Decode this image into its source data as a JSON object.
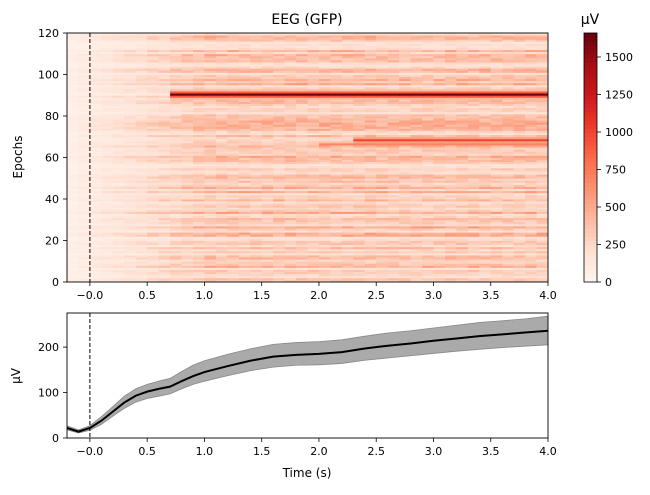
{
  "figure": {
    "title": "EEG (GFP)",
    "colorbar_title": "µV"
  },
  "chart_data": [
    {
      "type": "heatmap",
      "title": "EEG (GFP)",
      "ylabel": "Epochs",
      "xlim": [
        -0.2,
        4.0
      ],
      "ylim": [
        0,
        120
      ],
      "xticks": [
        "−0.0",
        "0.5",
        "1.0",
        "1.5",
        "2.0",
        "2.5",
        "3.0",
        "3.5",
        "4.0"
      ],
      "xtick_values": [
        0.0,
        0.5,
        1.0,
        1.5,
        2.0,
        2.5,
        3.0,
        3.5,
        4.0
      ],
      "yticks": [
        "0",
        "20",
        "40",
        "60",
        "80",
        "100",
        "120"
      ],
      "ytick_values": [
        0,
        20,
        40,
        60,
        80,
        100,
        120
      ],
      "event_line_x": 0.0,
      "colormap": "Reds",
      "colorbar": {
        "label": "µV",
        "range": [
          0,
          1660
        ],
        "ticks": [
          "0",
          "250",
          "500",
          "750",
          "1000",
          "1250",
          "1500"
        ],
        "tick_values": [
          0,
          250,
          500,
          750,
          1000,
          1250,
          1500
        ]
      },
      "notable_rows": [
        {
          "epoch": 90,
          "from_time": 0.7,
          "value": 1650
        },
        {
          "epoch": 68,
          "from_time": 2.3,
          "value": 1000
        },
        {
          "epoch": 66,
          "from_time": 2.0,
          "value": 700
        }
      ],
      "grid": false
    },
    {
      "type": "line",
      "xlabel": "Time (s)",
      "ylabel": "µV",
      "xlim": [
        -0.2,
        4.0
      ],
      "ylim": [
        0,
        275
      ],
      "xticks": [
        "−0.0",
        "0.5",
        "1.0",
        "1.5",
        "2.0",
        "2.5",
        "3.0",
        "3.5",
        "4.0"
      ],
      "xtick_values": [
        0.0,
        0.5,
        1.0,
        1.5,
        2.0,
        2.5,
        3.0,
        3.5,
        4.0
      ],
      "yticks": [
        "0",
        "100",
        "200"
      ],
      "ytick_values": [
        0,
        100,
        200
      ],
      "event_line_x": 0.0,
      "series": [
        {
          "color": "#000000",
          "band_color": "#aaaaaa",
          "x": [
            -0.2,
            -0.1,
            0.0,
            0.1,
            0.2,
            0.3,
            0.4,
            0.5,
            0.6,
            0.7,
            0.8,
            0.9,
            1.0,
            1.2,
            1.4,
            1.6,
            1.8,
            2.0,
            2.2,
            2.4,
            2.6,
            2.8,
            3.0,
            3.2,
            3.4,
            3.6,
            3.8,
            4.0
          ],
          "values": [
            22,
            14,
            22,
            38,
            58,
            78,
            93,
            102,
            108,
            113,
            125,
            136,
            145,
            158,
            170,
            179,
            183,
            185,
            189,
            197,
            203,
            208,
            214,
            219,
            224,
            228,
            232,
            236
          ],
          "lower": [
            18,
            11,
            17,
            30,
            48,
            65,
            79,
            87,
            92,
            97,
            108,
            118,
            125,
            137,
            148,
            156,
            160,
            161,
            164,
            171,
            176,
            181,
            186,
            191,
            195,
            199,
            202,
            205
          ],
          "upper": [
            27,
            18,
            27,
            47,
            69,
            92,
            108,
            118,
            125,
            131,
            146,
            160,
            170,
            184,
            196,
            206,
            210,
            212,
            216,
            224,
            231,
            236,
            242,
            248,
            254,
            258,
            262,
            268
          ]
        }
      ],
      "grid": false
    }
  ]
}
